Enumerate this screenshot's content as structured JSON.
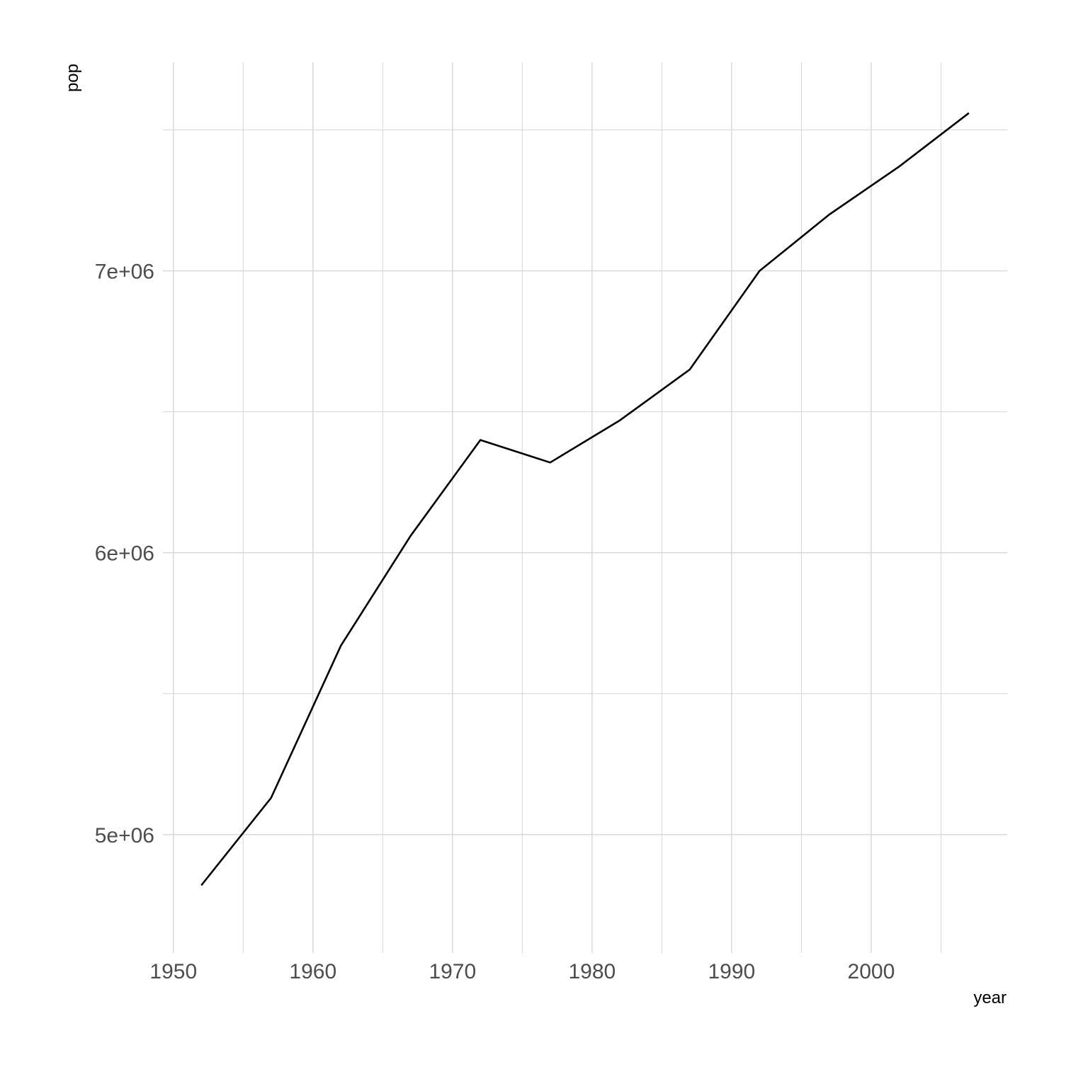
{
  "chart_data": {
    "type": "line",
    "title": "",
    "xlabel": "year",
    "ylabel": "pop",
    "xlim": [
      1949.25,
      2009.75
    ],
    "ylim": [
      4580000,
      7740000
    ],
    "x_ticks": [
      1950,
      1960,
      1970,
      1980,
      1990,
      2000
    ],
    "x_tick_labels": [
      "1950",
      "1960",
      "1970",
      "1980",
      "1990",
      "2000"
    ],
    "x_minor_ticks": [
      1955,
      1965,
      1975,
      1985,
      1995,
      2005
    ],
    "y_ticks": [
      5000000,
      6000000,
      7000000
    ],
    "y_tick_labels": [
      "5e+06",
      "6e+06",
      "7e+06"
    ],
    "y_minor_ticks": [
      5500000,
      6500000,
      7500000
    ],
    "grid": true,
    "legend": "none",
    "colors": {
      "line": "#000000",
      "grid": "#d6d6d6",
      "tick_label": "#4d4d4d",
      "axis_title": "#000000"
    },
    "series": [
      {
        "x": [
          1952,
          1957,
          1962,
          1967,
          1972,
          1977,
          1982,
          1987,
          1992,
          1997,
          2002,
          2007
        ],
        "values": [
          4820000,
          5130000,
          5670000,
          6060000,
          6400000,
          6320000,
          6470000,
          6650000,
          7000000,
          7200000,
          7370000,
          7560000
        ]
      }
    ]
  }
}
